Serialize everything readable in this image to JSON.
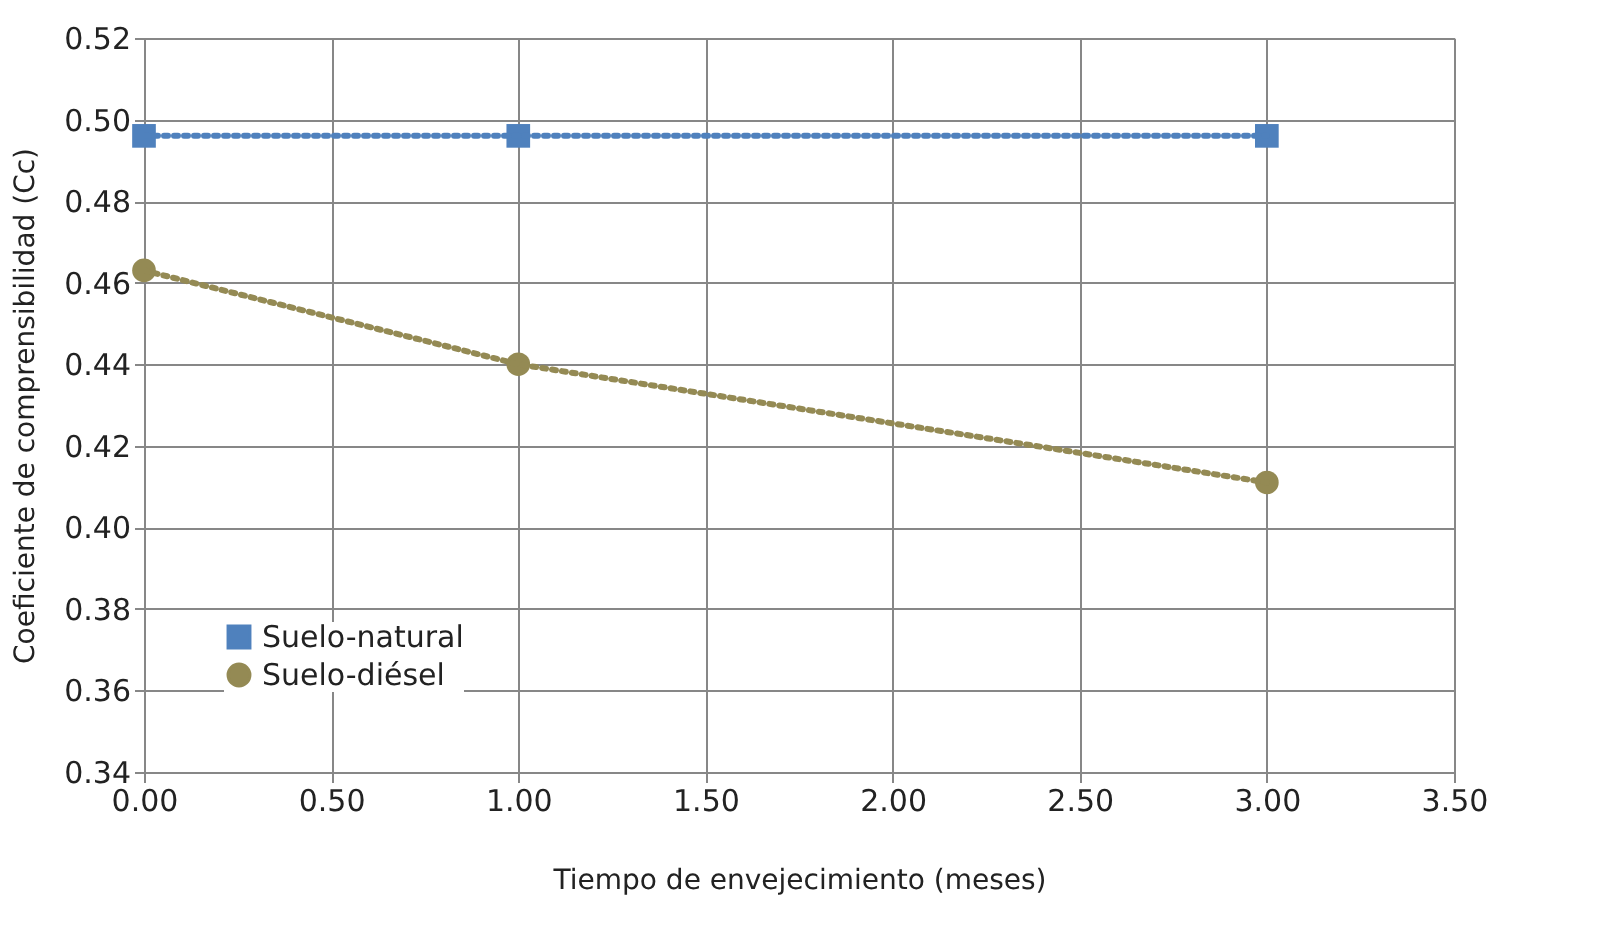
{
  "chart_data": {
    "type": "line",
    "xlabel": "Tiempo de envejecimiento (meses)",
    "ylabel": "Coeficiente de comprensibilidad (Cc)",
    "x": [
      0,
      1,
      3
    ],
    "series": [
      {
        "name": "Suelo-natural",
        "color": "#4f81bd",
        "values": [
          0.496,
          0.496,
          0.496
        ],
        "marker": "square"
      },
      {
        "name": "Suelo-diésel",
        "color": "#948a54",
        "values": [
          0.463,
          0.44,
          0.411
        ],
        "marker": "circle"
      }
    ],
    "xlim": [
      0,
      3.5
    ],
    "xticks": [
      {
        "value": 0,
        "label": "0.00"
      },
      {
        "value": 0.5,
        "label": "0.50"
      },
      {
        "value": 1,
        "label": "1.00"
      },
      {
        "value": 1.5,
        "label": "1.50"
      },
      {
        "value": 2,
        "label": "2.00"
      },
      {
        "value": 2.5,
        "label": "2.50"
      },
      {
        "value": 3,
        "label": "3.00"
      },
      {
        "value": 3.5,
        "label": "3.50"
      }
    ],
    "ylim": [
      0.34,
      0.52
    ],
    "yticks": [
      {
        "value": 0.34,
        "label": "0.34"
      },
      {
        "value": 0.36,
        "label": "0.36"
      },
      {
        "value": 0.38,
        "label": "0.38"
      },
      {
        "value": 0.4,
        "label": "0.40"
      },
      {
        "value": 0.42,
        "label": "0.42"
      },
      {
        "value": 0.44,
        "label": "0.44"
      },
      {
        "value": 0.46,
        "label": "0.46"
      },
      {
        "value": 0.48,
        "label": "0.48"
      },
      {
        "value": 0.5,
        "label": "0.50"
      },
      {
        "value": 0.52,
        "label": "0.52"
      }
    ],
    "grid": true,
    "legend": "bottom left",
    "line_style": "dotted"
  }
}
